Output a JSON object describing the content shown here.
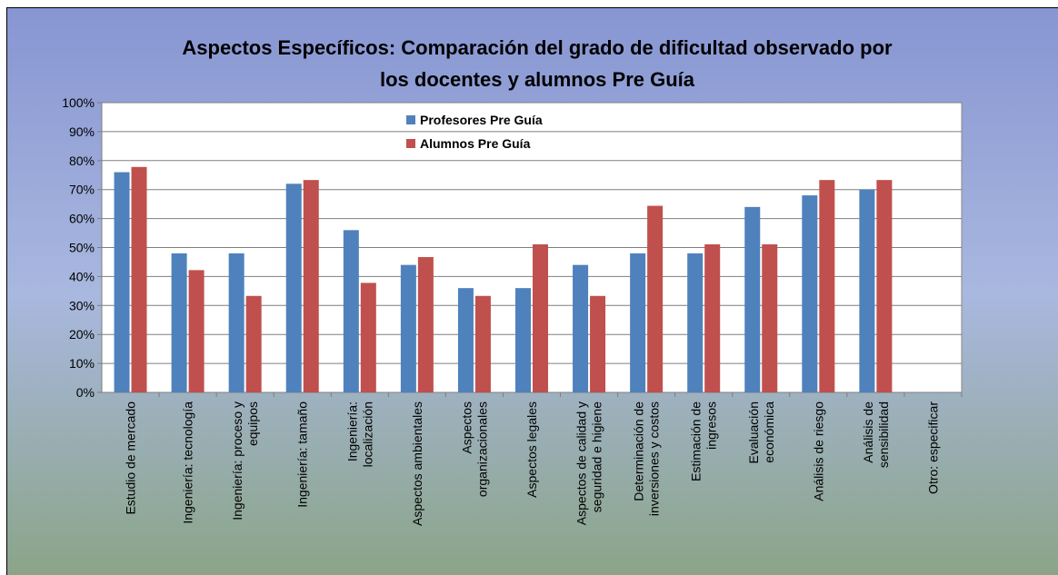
{
  "chart_data": {
    "type": "bar",
    "title": "Aspectos Específicos: Comparación del grado de dificultad observado por\nlos docentes y alumnos Pre Guía",
    "categories": [
      "Estudio de mercado",
      "Ingeniería: tecnología",
      "Ingeniería: proceso y\nequipos",
      "Ingeniería: tamaño",
      "Ingeniería:\nlocalización",
      "Aspectos ambientales",
      "Aspectos\norganizacionales",
      "Aspectos legales",
      "Aspectos de calidad y\nseguridad e higiene",
      "Determinación de\ninversiones y costos",
      "Estimación de\ningresos",
      "Evaluación\neconómica",
      "Análisis de riesgo",
      "Análisis de\nsensibilidad",
      "Otro: especificar"
    ],
    "series": [
      {
        "name": "Profesores Pre Guía",
        "color": "#4f81bd",
        "values": [
          76,
          48,
          48,
          72,
          56,
          44,
          36,
          36,
          44,
          48,
          48,
          64,
          68,
          70,
          null
        ]
      },
      {
        "name": "Alumnos Pre Guía",
        "color": "#c0504d",
        "values": [
          77.8,
          42.2,
          33.3,
          73.3,
          37.8,
          46.7,
          33.3,
          51.1,
          33.3,
          64.4,
          51.1,
          51.1,
          73.3,
          73.3,
          null
        ]
      }
    ],
    "ylim": [
      0,
      100
    ],
    "yticks": [
      {
        "value": 0,
        "label": "0%"
      },
      {
        "value": 10,
        "label": "10%"
      },
      {
        "value": 20,
        "label": "20%"
      },
      {
        "value": 30,
        "label": "30%"
      },
      {
        "value": 40,
        "label": "40%"
      },
      {
        "value": 50,
        "label": "50%"
      },
      {
        "value": 60,
        "label": "60%"
      },
      {
        "value": 70,
        "label": "70%"
      },
      {
        "value": 80,
        "label": "80%"
      },
      {
        "value": 90,
        "label": "90%"
      },
      {
        "value": 100,
        "label": "100%"
      }
    ],
    "grid": true,
    "legend": "top"
  }
}
